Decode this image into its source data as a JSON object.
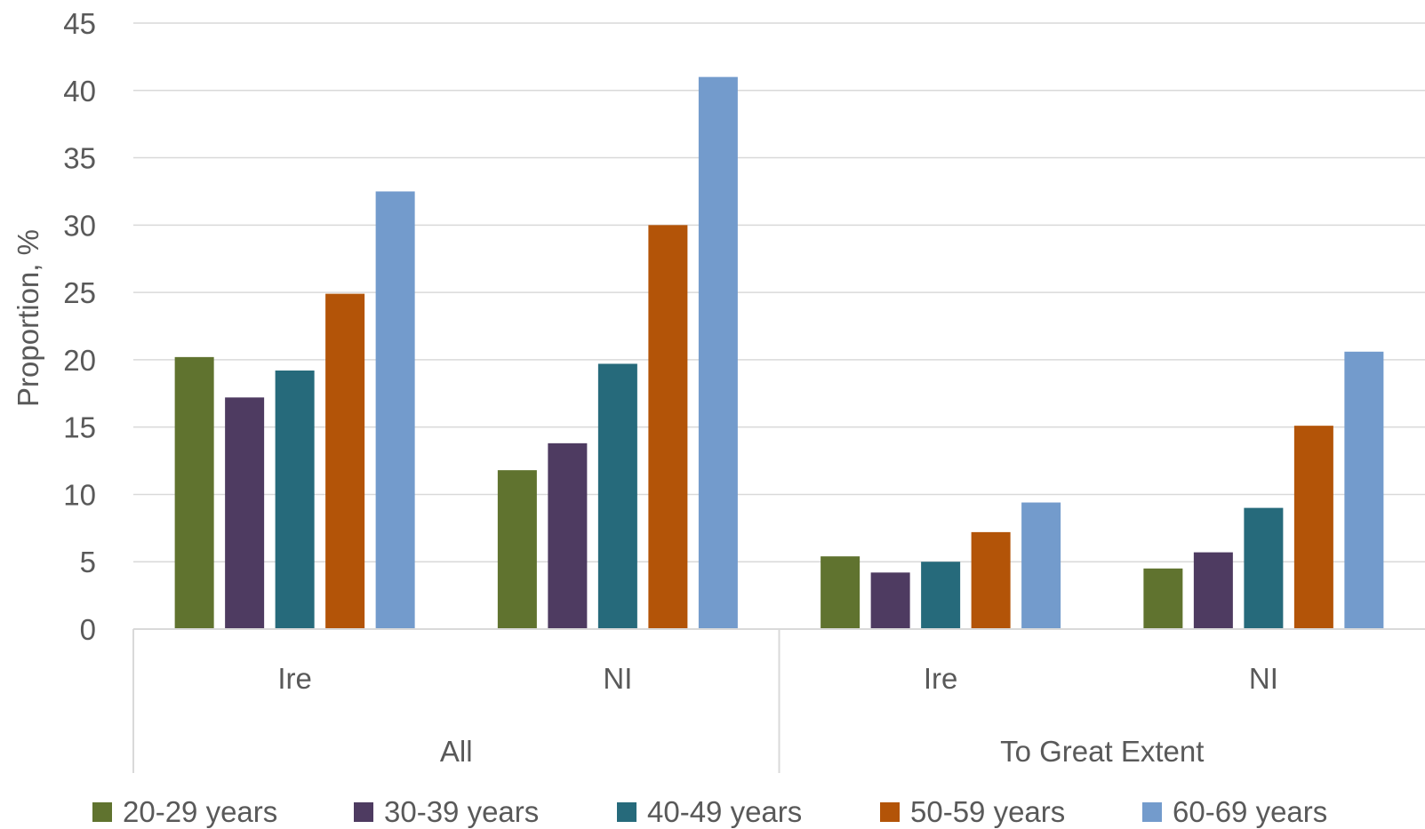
{
  "chart_data": {
    "type": "bar",
    "title": "",
    "ylabel": "Proportion, %",
    "xlabel": "",
    "ylim": [
      0,
      45
    ],
    "y_ticks": [
      "0",
      "5",
      "10",
      "15",
      "20",
      "25",
      "30",
      "35",
      "40",
      "45"
    ],
    "grid": true,
    "legend_position": "bottom",
    "groups": [
      {
        "label": "All",
        "categories": [
          "Ire",
          "NI"
        ]
      },
      {
        "label": "To Great Extent",
        "categories": [
          "Ire",
          "NI"
        ]
      }
    ],
    "categories": [
      "Ire",
      "NI",
      "Ire",
      "NI"
    ],
    "series": [
      {
        "name": "20-29 years",
        "color": "#60732f",
        "values": [
          20.2,
          11.8,
          5.4,
          4.5
        ]
      },
      {
        "name": "30-39 years",
        "color": "#4e3b61",
        "values": [
          17.2,
          13.8,
          4.2,
          5.7
        ]
      },
      {
        "name": "40-49 years",
        "color": "#266a7b",
        "values": [
          19.2,
          19.7,
          5.0,
          9.0
        ]
      },
      {
        "name": "50-59 years",
        "color": "#b35408",
        "values": [
          24.9,
          30.0,
          7.2,
          15.1
        ]
      },
      {
        "name": "60-69 years",
        "color": "#739bcc",
        "values": [
          32.5,
          41.0,
          9.4,
          20.6
        ]
      }
    ]
  }
}
